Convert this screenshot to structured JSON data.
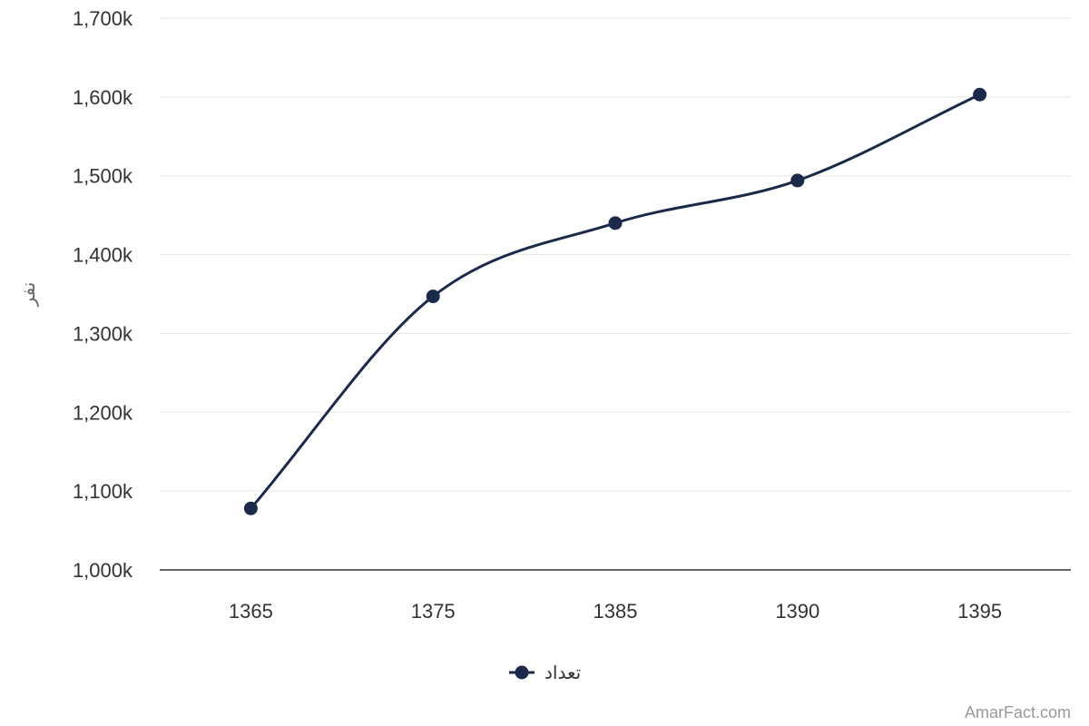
{
  "chart_data": {
    "type": "line",
    "smooth": true,
    "categories": [
      "1365",
      "1375",
      "1385",
      "1390",
      "1395"
    ],
    "series": [
      {
        "name": "تعداد",
        "color": "#1b2a4a",
        "values": [
          1078,
          1347,
          1440,
          1494,
          1603
        ]
      }
    ],
    "ylabel": "نفر",
    "xlabel": "",
    "ylim": [
      1000,
      1700
    ],
    "yticks": [
      "1,000k",
      "1,100k",
      "1,200k",
      "1,300k",
      "1,400k",
      "1,500k",
      "1,600k",
      "1,700k"
    ],
    "grid": true,
    "legend_position": "bottom-center"
  },
  "credit": "AmarFact.com",
  "colors": {
    "grid": "#e6e6e6",
    "axis": "#333333",
    "series": "#1b2a4a"
  }
}
